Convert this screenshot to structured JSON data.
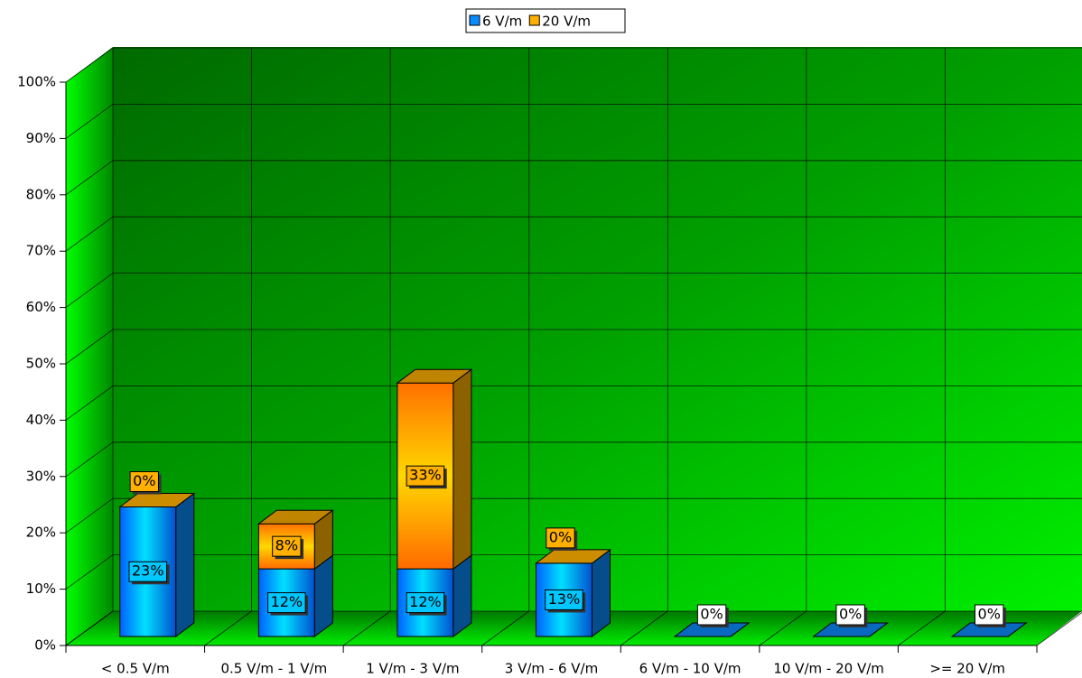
{
  "chart_data": {
    "type": "bar",
    "stacked": true,
    "categories": [
      "< 0.5 V/m",
      "0.5 V/m - 1 V/m",
      "1 V/m - 3 V/m",
      "3 V/m - 6 V/m",
      "6 V/m - 10 V/m",
      "10 V/m - 20 V/m",
      ">= 20 V/m"
    ],
    "series": [
      {
        "name": "6 V/m",
        "color": "#0a8cff",
        "values": [
          23,
          12,
          12,
          13,
          0,
          0,
          0
        ],
        "value_labels": [
          "23%",
          "12%",
          "12%",
          "13%",
          "0%",
          "0%",
          "0%"
        ]
      },
      {
        "name": "20 V/m",
        "color": "#ffb000",
        "values": [
          0,
          8,
          33,
          0,
          0,
          0,
          0
        ],
        "value_labels": [
          "0%",
          "8%",
          "33%",
          "0%",
          null,
          null,
          null
        ]
      }
    ],
    "ylim": [
      0,
      100
    ],
    "yticks": [
      {
        "value": 0,
        "label": "0%"
      },
      {
        "value": 10,
        "label": "10%"
      },
      {
        "value": 20,
        "label": "20%"
      },
      {
        "value": 30,
        "label": "30%"
      },
      {
        "value": 40,
        "label": "40%"
      },
      {
        "value": 50,
        "label": "50%"
      },
      {
        "value": 60,
        "label": "60%"
      },
      {
        "value": 70,
        "label": "70%"
      },
      {
        "value": 80,
        "label": "80%"
      },
      {
        "value": 90,
        "label": "90%"
      },
      {
        "value": 100,
        "label": "100%"
      }
    ],
    "grid": true,
    "legend": "top"
  }
}
